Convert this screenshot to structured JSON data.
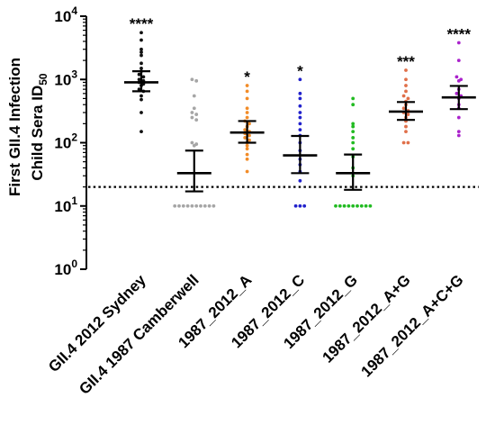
{
  "chart_data": {
    "type": "scatter",
    "ylabel_line1": "First GII.4 Infection",
    "ylabel_line2_main": "Child Sera ID",
    "ylabel_line2_sub": "50",
    "y_scale": "log10",
    "ylim": [
      1,
      10000
    ],
    "y_ticks": [
      {
        "base": "10",
        "exp": "0",
        "value": 1
      },
      {
        "base": "10",
        "exp": "1",
        "value": 10
      },
      {
        "base": "10",
        "exp": "2",
        "value": 100
      },
      {
        "base": "10",
        "exp": "3",
        "value": 1000
      },
      {
        "base": "10",
        "exp": "4",
        "value": 10000
      }
    ],
    "reference_line": {
      "value": 20,
      "style": "dotted"
    },
    "categories": [
      "GII.4 2012 Sydney",
      "GII.4 1987 Camberwell",
      "1987_2012_A",
      "1987_2012_C",
      "1987_2012_G",
      "1987_2012_A+G",
      "1987_2012_A+C+G"
    ],
    "series": [
      {
        "category": "GII.4 2012 Sydney",
        "color": "#111111",
        "significance": "****",
        "geomean": 900,
        "ci": [
          650,
          1350
        ],
        "values": [
          5500,
          4200,
          3000,
          2700,
          2400,
          1800,
          1500,
          1350,
          1200,
          1100,
          1000,
          950,
          900,
          850,
          800,
          700,
          650,
          550,
          480,
          300,
          150
        ]
      },
      {
        "category": "GII.4 1987 Camberwell",
        "color": "#a6a6a6",
        "significance": "",
        "geomean": 33,
        "ci": [
          17,
          75
        ],
        "values": [
          1000,
          950,
          550,
          350,
          300,
          280,
          250,
          230,
          100,
          95,
          90,
          10,
          10,
          10,
          10,
          10,
          10,
          10,
          10,
          10,
          10
        ]
      },
      {
        "category": "1987_2012_A",
        "color": "#f28c28",
        "significance": "*",
        "geomean": 145,
        "ci": [
          100,
          220
        ],
        "values": [
          800,
          650,
          500,
          350,
          300,
          250,
          220,
          200,
          180,
          160,
          150,
          140,
          130,
          120,
          110,
          100,
          90,
          80,
          65,
          55,
          35
        ]
      },
      {
        "category": "1987_2012_C",
        "color": "#2222cc",
        "significance": "*",
        "geomean": 63,
        "ci": [
          33,
          128
        ],
        "values": [
          1000,
          600,
          500,
          380,
          300,
          250,
          200,
          160,
          130,
          100,
          75,
          55,
          45,
          35,
          25,
          10,
          10,
          10
        ]
      },
      {
        "category": "1987_2012_G",
        "color": "#22bb22",
        "significance": "",
        "geomean": 33,
        "ci": [
          18,
          65
        ],
        "values": [
          500,
          400,
          200,
          180,
          150,
          120,
          100,
          80,
          60,
          40,
          30,
          10,
          10,
          10,
          10,
          10,
          10,
          10,
          10,
          10
        ]
      },
      {
        "category": "1987_2012_A+G",
        "color": "#e0704a",
        "significance": "***",
        "geomean": 310,
        "ci": [
          230,
          440
        ],
        "values": [
          1400,
          1000,
          800,
          650,
          550,
          500,
          450,
          400,
          350,
          320,
          300,
          280,
          250,
          220,
          180,
          150,
          100,
          100
        ]
      },
      {
        "category": "1987_2012_A+C+G",
        "color": "#aa22cc",
        "significance": "****",
        "geomean": 520,
        "ci": [
          340,
          790
        ],
        "values": [
          3800,
          2000,
          1100,
          1000,
          950,
          700,
          600,
          550,
          500,
          400,
          350,
          250,
          150,
          130
        ]
      }
    ]
  }
}
